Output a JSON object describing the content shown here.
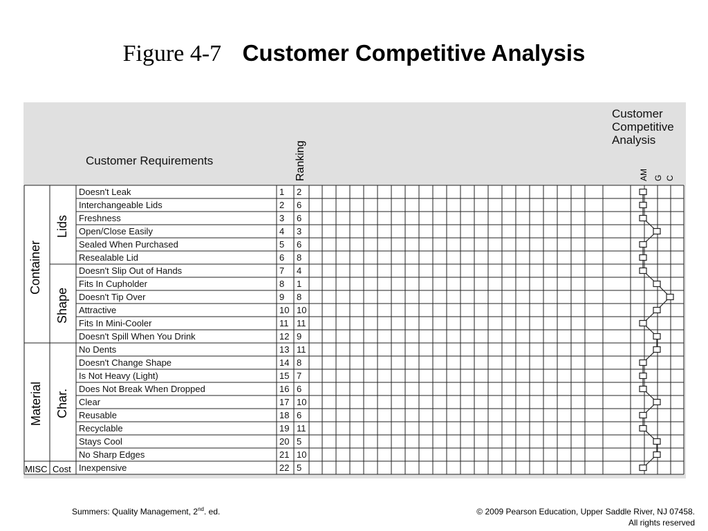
{
  "title": {
    "figure": "Figure 4-7",
    "name": "Customer Competitive Analysis"
  },
  "headers": {
    "customer_requirements": "Customer Requirements",
    "ranking": "Ranking",
    "competitive_analysis": [
      "Customer",
      "Competitive",
      "Analysis"
    ],
    "competitors": [
      "AM",
      "G",
      "C"
    ]
  },
  "groups": [
    {
      "name": "Container",
      "subgroups": [
        "Lids",
        "Shape"
      ]
    },
    {
      "name": "Material",
      "subgroups": [
        "Char."
      ]
    },
    {
      "name": "MISC",
      "subgroups": [
        "Cost"
      ]
    }
  ],
  "requirements": [
    {
      "no": "1",
      "text": "Doesn't Leak",
      "rank": "2",
      "level": 0
    },
    {
      "no": "2",
      "text": "Interchangeable Lids",
      "rank": "6",
      "level": 0
    },
    {
      "no": "3",
      "text": "Freshness",
      "rank": "6",
      "level": 0
    },
    {
      "no": "4",
      "text": "Open/Close Easily",
      "rank": "3",
      "level": 1
    },
    {
      "no": "5",
      "text": "Sealed When Purchased",
      "rank": "6",
      "level": 0
    },
    {
      "no": "6",
      "text": "Resealable Lid",
      "rank": "8",
      "level": 0
    },
    {
      "no": "7",
      "text": "Doesn't Slip Out of Hands",
      "rank": "4",
      "level": 0
    },
    {
      "no": "8",
      "text": "Fits In Cupholder",
      "rank": "1",
      "level": 1
    },
    {
      "no": "9",
      "text": "Doesn't Tip Over",
      "rank": "8",
      "level": 2
    },
    {
      "no": "10",
      "text": "Attractive",
      "rank": "10",
      "level": 1
    },
    {
      "no": "11",
      "text": "Fits In Mini-Cooler",
      "rank": "11",
      "level": 0
    },
    {
      "no": "12",
      "text": "Doesn't Spill When You Drink",
      "rank": "9",
      "level": 1
    },
    {
      "no": "13",
      "text": "No Dents",
      "rank": "11",
      "level": 1
    },
    {
      "no": "14",
      "text": "Doesn't Change Shape",
      "rank": "8",
      "level": 0
    },
    {
      "no": "15",
      "text": "Is Not Heavy (Light)",
      "rank": "7",
      "level": 0
    },
    {
      "no": "16",
      "text": "Does Not Break When Dropped",
      "rank": "6",
      "level": 0
    },
    {
      "no": "17",
      "text": "Clear",
      "rank": "10",
      "level": 1
    },
    {
      "no": "18",
      "text": "Reusable",
      "rank": "6",
      "level": 0
    },
    {
      "no": "19",
      "text": "Recyclable",
      "rank": "11",
      "level": 0
    },
    {
      "no": "20",
      "text": "Stays Cool",
      "rank": "5",
      "level": 1
    },
    {
      "no": "21",
      "text": "No Sharp Edges",
      "rank": "10",
      "level": 1
    },
    {
      "no": "22",
      "text": "Inexpensive",
      "rank": "5",
      "level": 0
    }
  ],
  "footer": {
    "left_main": "Summers: Quality Management, 2",
    "left_sup": "nd",
    "left_tail": ". ed.",
    "right_line1": "© 2009 Pearson Education, Upper Saddle River, NJ 07458.",
    "right_line2": "All rights reserved"
  }
}
